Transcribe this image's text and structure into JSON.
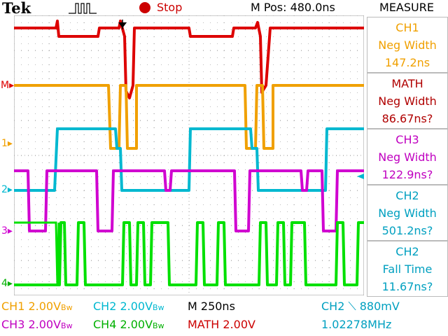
{
  "header": {
    "brand": "Tek",
    "status": "Stop",
    "mpos": "M Pos: 480.0ns"
  },
  "measure": {
    "title": "MEASURE",
    "items": [
      {
        "source": "CH1",
        "type": "Neg Width",
        "value": "147.2ns",
        "color": "#f0a000"
      },
      {
        "source": "MATH",
        "type": "Neg Width",
        "value": "86.67ns?",
        "color": "#b00000"
      },
      {
        "source": "CH3",
        "type": "Neg Width",
        "value": "122.9ns?",
        "color": "#c000c0"
      },
      {
        "source": "CH2",
        "type": "Neg Width",
        "value": "501.2ns?",
        "color": "#00a0c0"
      },
      {
        "source": "CH2",
        "type": "Fall Time",
        "value": "11.67ns?",
        "color": "#00a0c0"
      }
    ]
  },
  "channel_markers": [
    "M",
    "1",
    "2",
    "3",
    "4"
  ],
  "bottom": {
    "ch1": "CH1  2.00V",
    "ch2": "CH2  2.00V",
    "timebase": "M 250ns",
    "trigger": "CH2 ⟍ 880mV",
    "ch3": "CH3  2.00V",
    "ch4": "CH4  2.00V",
    "math": "MATH 2.00V",
    "freq": "1.02278MHz",
    "bw": "Bw"
  },
  "colors": {
    "ch1": "#f0a000",
    "ch2": "#00b8d0",
    "ch3": "#d000d0",
    "ch4": "#00e000",
    "math": "#dd0000"
  }
}
